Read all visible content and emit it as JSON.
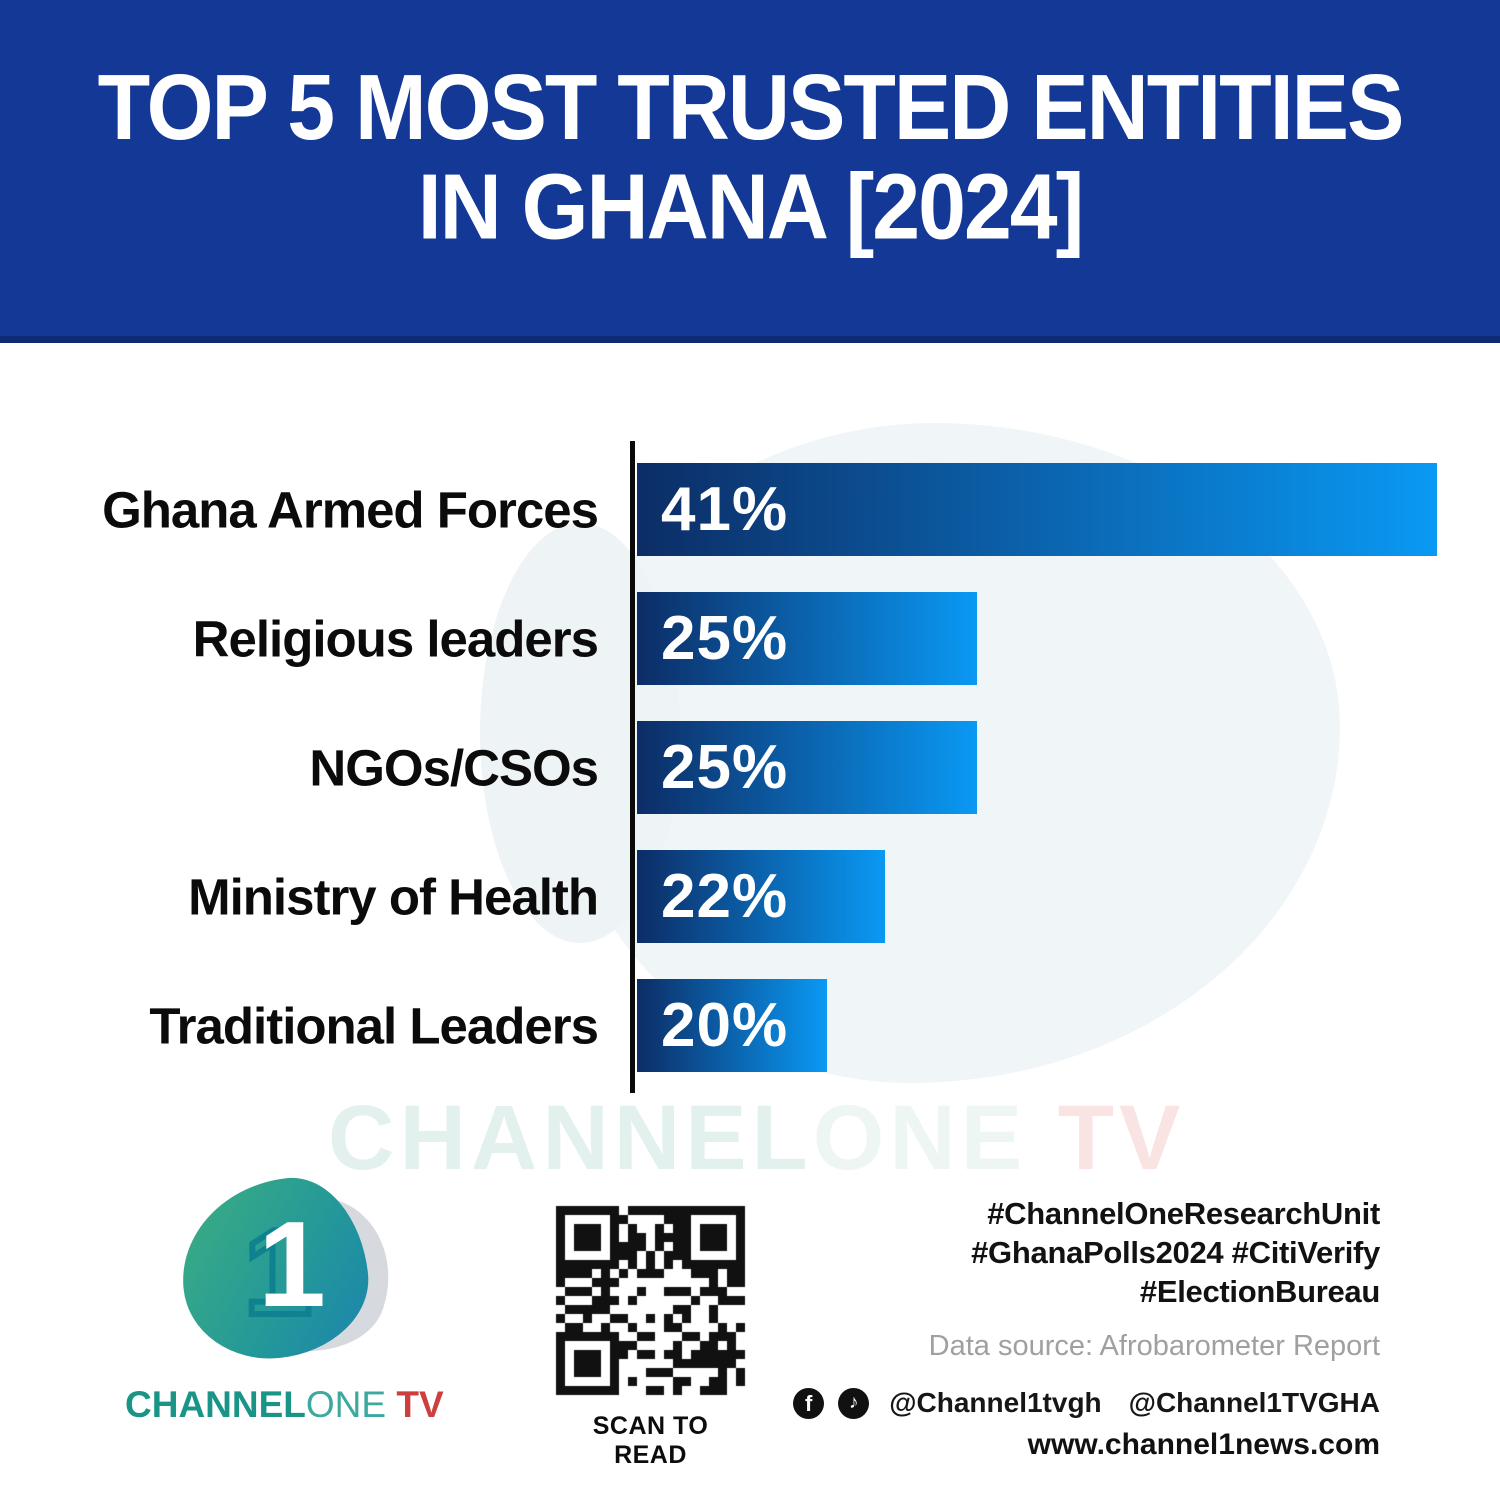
{
  "header": {
    "title_line1": "TOP 5 MOST TRUSTED ENTITIES",
    "title_line2": "IN GHANA [2024]"
  },
  "chart_data": {
    "type": "bar",
    "orientation": "horizontal",
    "title": "TOP 5 MOST TRUSTED ENTITIES IN GHANA [2024]",
    "categories": [
      "Ghana Armed Forces",
      "Religious leaders",
      "NGOs/CSOs",
      "Ministry of Health",
      "Traditional Leaders"
    ],
    "values": [
      41,
      25,
      25,
      22,
      20
    ],
    "unit": "%",
    "value_labels": [
      "41%",
      "25%",
      "25%",
      "22%",
      "20%"
    ],
    "bar_display_width_pct": [
      100,
      42.5,
      42.5,
      31,
      23.7
    ],
    "bar_gradient_start": "#0c2d66",
    "bar_gradient_end": "#0a99f4",
    "axis_color": "#0a0a0a",
    "label_color": "#0b0b0b",
    "xlabel": "",
    "ylabel": "",
    "grid": false,
    "legend": false
  },
  "watermark": {
    "part1": "CHANNEL",
    "part2": "ONE",
    "part3": " TV"
  },
  "footer": {
    "logo": {
      "digit": "1",
      "brand_part1": "CHANNEL",
      "brand_part2": "ONE",
      "brand_part3": " TV",
      "brand_color_teal": "#1b9488",
      "brand_color_red": "#cc3f3e"
    },
    "qr_caption": "SCAN TO READ",
    "hashtags": [
      "#ChannelOneResearchUnit",
      "#GhanaPolls2024 #CitiVerify",
      "#ElectionBureau"
    ],
    "data_source": "Data source: Afrobarometer Report",
    "social": {
      "icons": [
        "facebook",
        "instagram",
        "tiktok",
        "youtube"
      ],
      "handle_main": "@Channel1tvgh",
      "x_icon": "x-twitter",
      "handle_x": "@Channel1TVGHA",
      "website": "www.channel1news.com"
    },
    "colors": {
      "header_bg": "#143895",
      "header_edge": "#0d2b72",
      "source_text": "#a0a0a0"
    }
  }
}
